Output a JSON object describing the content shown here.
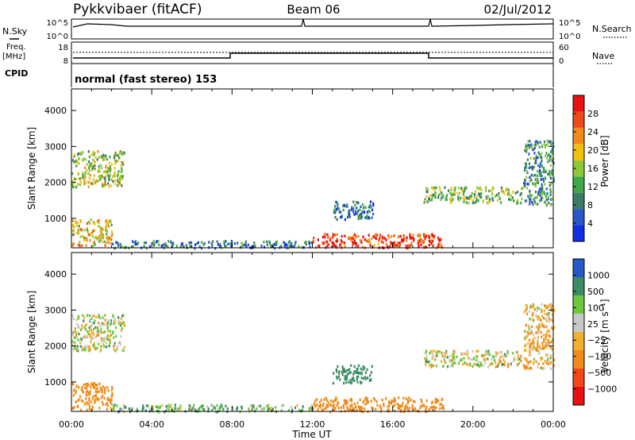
{
  "header": {
    "station": "Pykkvibaer (fitACF)",
    "beam": "Beam 06",
    "date": "02/Jul/2012"
  },
  "status_panels": {
    "nsky_label": "N.Sky",
    "nsearch_label": "N.Search",
    "noise_ticks_left": [
      "10^5",
      "10^0"
    ],
    "noise_ticks_right": [
      "10^5",
      "10^0"
    ],
    "freq_label": "Freq.",
    "freq_unit": "[MHz]",
    "freq_ticks": [
      "18",
      "8"
    ],
    "nave_label": "Nave",
    "nave_ticks": [
      "60",
      "0"
    ],
    "cpid_label": "CPID",
    "cpid_text": "normal (fast stereo) 153"
  },
  "colors": {
    "power": [
      "#1030e0",
      "#2858c8",
      "#3c7c64",
      "#3ea84a",
      "#8cc83c",
      "#f0c010",
      "#f08a1a",
      "#f04818",
      "#e81010"
    ],
    "velocity": [
      "#e81010",
      "#f04818",
      "#f08a1a",
      "#f0b030",
      "#c8c8c8",
      "#6cc83c",
      "#3c8c64",
      "#2858c8"
    ]
  },
  "chart_data": [
    {
      "type": "heatmap",
      "parameter": "Power",
      "ylabel": "Slant Range [km]",
      "xlabel": "",
      "ylim": [
        180,
        4600
      ],
      "xlim": [
        "00:00",
        "24:00"
      ],
      "y_ticks": [
        "1000",
        "2000",
        "3000",
        "4000"
      ],
      "x_ticks": [
        "00:00",
        "04:00",
        "08:00",
        "12:00",
        "16:00",
        "20:00",
        "00:00"
      ],
      "colorbar": {
        "label": "Power [dB]",
        "ticks": [
          "4",
          "8",
          "12",
          "16",
          "20",
          "24",
          "28"
        ],
        "range": [
          0,
          32
        ]
      },
      "scatter_regions": [
        {
          "t_start": 0.0,
          "t_end": 2.6,
          "range_start": 1900,
          "range_end": 2900,
          "level_db": 16
        },
        {
          "t_start": 0.0,
          "t_end": 2.0,
          "range_start": 250,
          "range_end": 1000,
          "level_db": 20
        },
        {
          "t_start": 2.0,
          "t_end": 12.0,
          "range_start": 200,
          "range_end": 400,
          "level_db": 8
        },
        {
          "t_start": 12.0,
          "t_end": 18.5,
          "range_start": 200,
          "range_end": 600,
          "level_db": 28
        },
        {
          "t_start": 13.0,
          "t_end": 15.0,
          "range_start": 1000,
          "range_end": 1500,
          "level_db": 6
        },
        {
          "t_start": 17.5,
          "t_end": 22.5,
          "range_start": 1450,
          "range_end": 1900,
          "level_db": 14
        },
        {
          "t_start": 22.5,
          "t_end": 24.0,
          "range_start": 1400,
          "range_end": 3200,
          "level_db": 10
        }
      ]
    },
    {
      "type": "heatmap",
      "parameter": "Velocity",
      "ylabel": "Slant Range [km]",
      "xlabel": "Time UT",
      "ylim": [
        180,
        4600
      ],
      "xlim": [
        "00:00",
        "24:00"
      ],
      "y_ticks": [
        "1000",
        "2000",
        "3000",
        "4000"
      ],
      "x_ticks": [
        "00:00",
        "04:00",
        "08:00",
        "12:00",
        "16:00",
        "20:00",
        "00:00"
      ],
      "colorbar": {
        "label": "Velocity [m s⁻¹]",
        "ticks": [
          "1000",
          "500",
          "100",
          "25",
          "−25",
          "−100",
          "−500",
          "−1000"
        ]
      },
      "scatter_regions": [
        {
          "t_start": 0.0,
          "t_end": 2.6,
          "range_start": 1900,
          "range_end": 2900,
          "velocity_ms": 0
        },
        {
          "t_start": 0.0,
          "t_end": 2.0,
          "range_start": 250,
          "range_end": 1000,
          "velocity_ms": -200
        },
        {
          "t_start": 2.0,
          "t_end": 12.0,
          "range_start": 200,
          "range_end": 400,
          "velocity_ms": 80
        },
        {
          "t_start": 12.0,
          "t_end": 18.5,
          "range_start": 200,
          "range_end": 600,
          "velocity_ms": -300
        },
        {
          "t_start": 13.0,
          "t_end": 15.0,
          "range_start": 1000,
          "range_end": 1500,
          "velocity_ms": 300
        },
        {
          "t_start": 17.5,
          "t_end": 22.5,
          "range_start": 1450,
          "range_end": 1900,
          "velocity_ms": 0
        },
        {
          "t_start": 22.5,
          "t_end": 24.0,
          "range_start": 1400,
          "range_end": 3200,
          "velocity_ms": -80
        }
      ]
    }
  ]
}
